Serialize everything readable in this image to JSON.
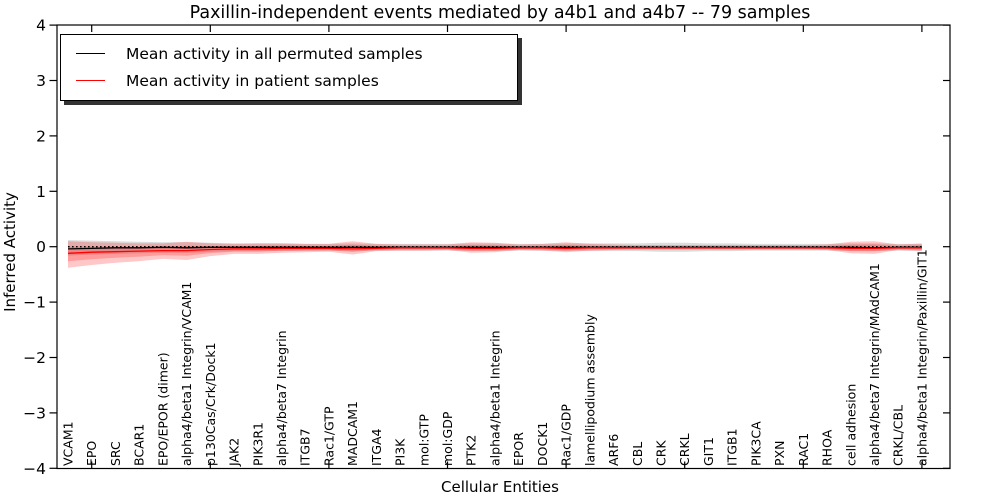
{
  "figure": {
    "background": "#ffffff"
  },
  "legend": {
    "position": "upper left",
    "items": [
      {
        "label": "Mean activity in all permuted samples",
        "color": "#000000"
      },
      {
        "label": "Mean activity in patient samples",
        "color": "#ff0000"
      }
    ]
  },
  "chart_data": {
    "type": "line",
    "title": "Paxillin-independent events mediated by a4b1 and a4b7 -- 79 samples",
    "xlabel": "Cellular Entities",
    "ylabel": "Inferred Activity",
    "ylim": [
      -4,
      4
    ],
    "ytick_values": [
      4,
      3,
      2,
      1,
      0,
      -1,
      -2,
      -3,
      -4
    ],
    "ytick_labels": [
      "4",
      "3",
      "2",
      "1",
      "0",
      "−1",
      "−2",
      "−3",
      "−4"
    ],
    "xtick_indices": [
      1,
      6,
      11,
      16,
      21,
      26,
      31,
      36
    ],
    "grid": false,
    "legend_position": "upper left",
    "categories": [
      "VCAM1",
      "EPO",
      "SRC",
      "BCAR1",
      "EPO/EPOR (dimer)",
      "alpha4/beta1 Integrin/VCAM1",
      "p130Cas/Crk/Dock1",
      "JAK2",
      "PIK3R1",
      "alpha4/beta7 Integrin",
      "ITGB7",
      "Rac1/GTP",
      "MADCAM1",
      "ITGA4",
      "PI3K",
      "mol:GTP",
      "mol:GDP",
      "PTK2",
      "alpha4/beta1 Integrin",
      "EPOR",
      "DOCK1",
      "Rac1/GDP",
      "lamellipodium assembly",
      "ARF6",
      "CBL",
      "CRK",
      "CRKL",
      "GIT1",
      "ITGB1",
      "PIK3CA",
      "PXN",
      "RAC1",
      "RHOA",
      "cell adhesion",
      "alpha4/beta7 Integrin/MAdCAM1",
      "CRKL/CBL",
      "alpha4/beta1 Integrin/Paxillin/GIT1"
    ],
    "series": [
      {
        "name": "Mean activity in all permuted samples",
        "color": "#000000",
        "style": "solid",
        "values": [
          -0.04,
          -0.03,
          -0.02,
          -0.02,
          -0.01,
          -0.02,
          -0.01,
          -0.01,
          -0.01,
          -0.01,
          -0.01,
          -0.01,
          -0.01,
          -0.01,
          -0.01,
          -0.01,
          -0.01,
          -0.01,
          -0.01,
          -0.01,
          -0.01,
          -0.01,
          -0.01,
          -0.01,
          -0.01,
          -0.01,
          -0.01,
          -0.01,
          -0.01,
          -0.01,
          -0.01,
          -0.01,
          -0.01,
          -0.01,
          -0.02,
          -0.01,
          -0.01
        ]
      },
      {
        "name": "Zero reference (dotted)",
        "color": "#000000",
        "style": "dotted",
        "values": [
          0,
          0,
          0,
          0,
          0,
          0,
          0,
          0,
          0,
          0,
          0,
          0,
          0,
          0,
          0,
          0,
          0,
          0,
          0,
          0,
          0,
          0,
          0,
          0,
          0,
          0,
          0,
          0,
          0,
          0,
          0,
          0,
          0,
          0,
          0,
          0,
          0
        ]
      },
      {
        "name": "Mean activity in patient samples",
        "color": "#ff0000",
        "style": "solid",
        "values": [
          -0.12,
          -0.1,
          -0.09,
          -0.08,
          -0.07,
          -0.07,
          -0.05,
          -0.04,
          -0.04,
          -0.03,
          -0.03,
          -0.03,
          -0.04,
          -0.03,
          -0.02,
          -0.02,
          -0.02,
          -0.03,
          -0.03,
          -0.02,
          -0.02,
          -0.03,
          -0.02,
          -0.02,
          -0.02,
          -0.02,
          -0.02,
          -0.02,
          -0.02,
          -0.02,
          -0.02,
          -0.02,
          -0.02,
          -0.03,
          -0.03,
          -0.02,
          -0.02
        ]
      }
    ],
    "bands": [
      {
        "name": "permuted-samples-range",
        "color": "rgba(90,90,90,0.22)",
        "upper": [
          0.12,
          0.11,
          0.1,
          0.09,
          0.08,
          0.08,
          0.07,
          0.06,
          0.06,
          0.06,
          0.05,
          0.05,
          0.06,
          0.05,
          0.05,
          0.05,
          0.05,
          0.06,
          0.06,
          0.05,
          0.05,
          0.06,
          0.06,
          0.06,
          0.06,
          0.07,
          0.07,
          0.06,
          0.06,
          0.05,
          0.05,
          0.05,
          0.05,
          0.06,
          0.06,
          0.05,
          0.05
        ],
        "lower": [
          -0.16,
          -0.14,
          -0.13,
          -0.12,
          -0.11,
          -0.11,
          -0.09,
          -0.08,
          -0.08,
          -0.08,
          -0.07,
          -0.07,
          -0.08,
          -0.07,
          -0.07,
          -0.07,
          -0.07,
          -0.08,
          -0.08,
          -0.07,
          -0.07,
          -0.08,
          -0.08,
          -0.08,
          -0.08,
          -0.09,
          -0.09,
          -0.08,
          -0.08,
          -0.07,
          -0.07,
          -0.07,
          -0.07,
          -0.08,
          -0.08,
          -0.07,
          -0.07
        ]
      },
      {
        "name": "patient-samples-range",
        "color": "rgba(255,0,0,0.22)",
        "upper": [
          0.1,
          0.08,
          0.07,
          0.06,
          0.06,
          0.09,
          0.06,
          0.05,
          0.06,
          0.06,
          0.05,
          0.05,
          0.1,
          0.05,
          0.04,
          0.04,
          0.04,
          0.08,
          0.07,
          0.04,
          0.05,
          0.08,
          0.05,
          0.04,
          0.03,
          0.03,
          0.03,
          0.03,
          0.03,
          0.03,
          0.03,
          0.03,
          0.04,
          0.09,
          0.1,
          0.04,
          0.06
        ],
        "lower": [
          -0.38,
          -0.33,
          -0.29,
          -0.26,
          -0.22,
          -0.24,
          -0.17,
          -0.13,
          -0.13,
          -0.11,
          -0.1,
          -0.09,
          -0.14,
          -0.08,
          -0.07,
          -0.07,
          -0.06,
          -0.11,
          -0.1,
          -0.06,
          -0.07,
          -0.1,
          -0.07,
          -0.06,
          -0.05,
          -0.05,
          -0.05,
          -0.05,
          -0.05,
          -0.05,
          -0.05,
          -0.05,
          -0.06,
          -0.12,
          -0.13,
          -0.06,
          -0.08
        ]
      }
    ]
  }
}
